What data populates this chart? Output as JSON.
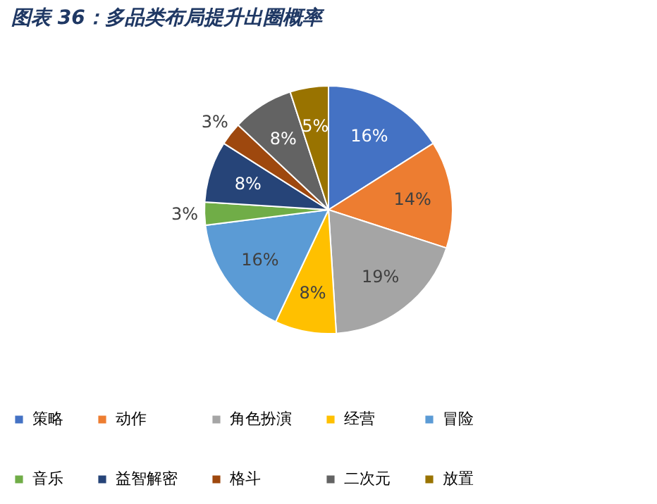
{
  "chart_data": {
    "type": "pie",
    "title": "图表 36：多品类布局提升出圈概率",
    "categories": [
      "策略",
      "动作",
      "角色扮演",
      "经营",
      "冒险",
      "音乐",
      "益智解密",
      "格斗",
      "二次元",
      "放置"
    ],
    "values": [
      16,
      14,
      19,
      8,
      16,
      3,
      8,
      3,
      8,
      5
    ],
    "value_labels": [
      "16%",
      "14%",
      "19%",
      "8%",
      "16%",
      "3%",
      "8%",
      "3%",
      "8%",
      "5%"
    ],
    "colors": [
      "#4472c4",
      "#ed7d31",
      "#a5a5a5",
      "#ffc000",
      "#5b9bd5",
      "#70ad47",
      "#264478",
      "#9e480e",
      "#636363",
      "#997300"
    ],
    "legend": "bottom"
  }
}
